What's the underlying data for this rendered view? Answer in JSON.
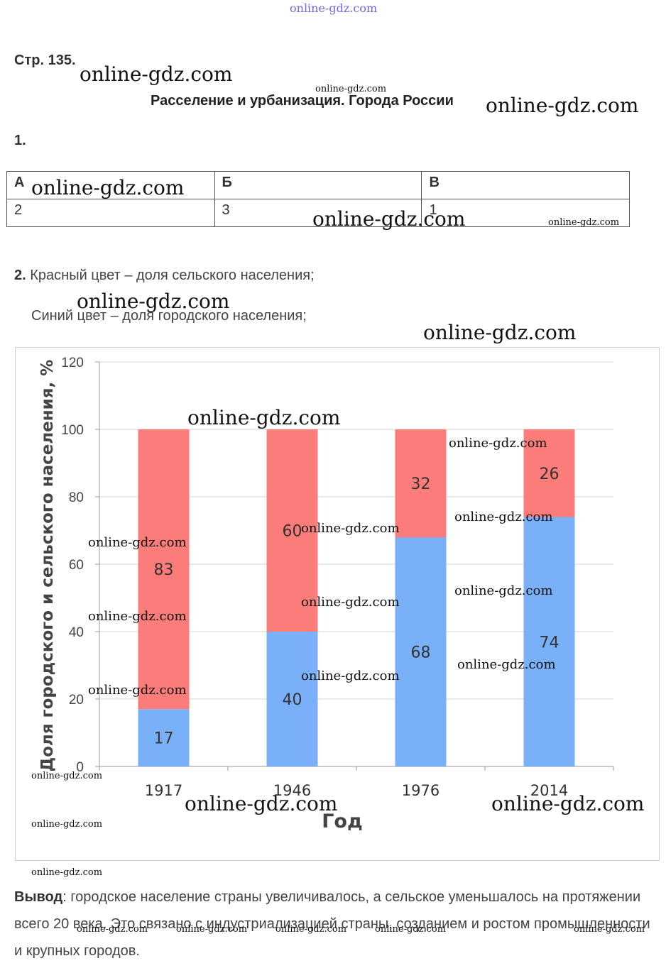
{
  "header": {
    "watermark": "online-gdz.com"
  },
  "page_number": "Стр. 135.",
  "title": "Расселение и урбанизация. Города России",
  "question1": {
    "number": "1.",
    "table": {
      "headers": [
        "А",
        "Б",
        "В"
      ],
      "values": [
        "2",
        "3",
        "1"
      ]
    }
  },
  "question2": {
    "number": "2.",
    "line1": "Красный цвет – доля сельского населения;",
    "line2": "Синий цвет – доля городского населения;"
  },
  "chart_data": {
    "type": "bar",
    "stacked": true,
    "categories": [
      "1917",
      "1946",
      "1976",
      "2014"
    ],
    "series": [
      {
        "values": [
          17,
          40,
          68,
          74
        ],
        "color": "#79b0f8"
      },
      {
        "values": [
          83,
          60,
          32,
          26
        ],
        "color": "#fb7c78"
      }
    ],
    "xlabel": "Год",
    "ylabel": "Доля городского и сельского населения, %",
    "ylim": [
      0,
      120
    ],
    "yticks": [
      0,
      20,
      40,
      60,
      80,
      100,
      120
    ],
    "grid": true
  },
  "conclusion": {
    "label": "Вывод",
    "text": ": городское население страны увеличивалось, а сельское уменьшалось на протяжении всего 20 века. Это связано с индустриализацией страны, созданием и ростом промышленности и крупных городов."
  },
  "watermarks": {
    "text": "online-gdz.com"
  }
}
